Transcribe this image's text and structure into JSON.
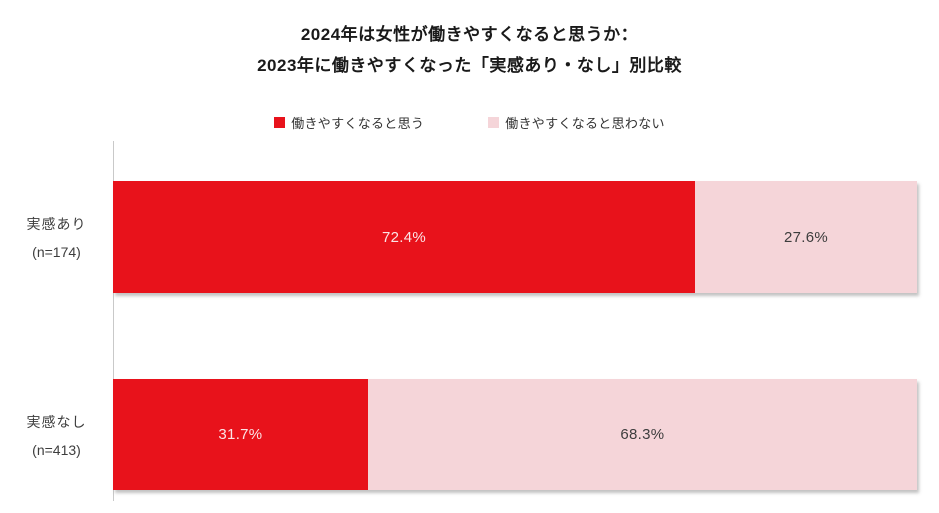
{
  "title": {
    "line1": "2024年は女性が働きやすくなると思うか：",
    "line2": "2023年に働きやすくなった「実感あり・なし」別比較"
  },
  "colors": {
    "agree_red": "#e8121b",
    "disagree_pink": "#f5d5d9",
    "axis_gray": "#c9c9c9"
  },
  "chart_data": {
    "type": "bar",
    "orientation": "horizontal",
    "stacked": true,
    "title": "2024年は女性が働きやすくなると思うか：2023年に働きやすくなった「実感あり・なし」別比較",
    "categories": [
      {
        "label": "実感あり",
        "n_label": "(n=174)"
      },
      {
        "label": "実感なし",
        "n_label": "(n=413)"
      }
    ],
    "series": [
      {
        "name": "働きやすくなると思う",
        "color": "#e8121b",
        "values": [
          72.4,
          31.7
        ],
        "labels": [
          "72.4%",
          "31.7%"
        ]
      },
      {
        "name": "働きやすくなると思わない",
        "color": "#f5d5d9",
        "values": [
          27.6,
          68.3
        ],
        "labels": [
          "27.6%",
          "68.3%"
        ]
      }
    ],
    "xlim": [
      0,
      100
    ],
    "legend_position": "top",
    "grid": false
  }
}
